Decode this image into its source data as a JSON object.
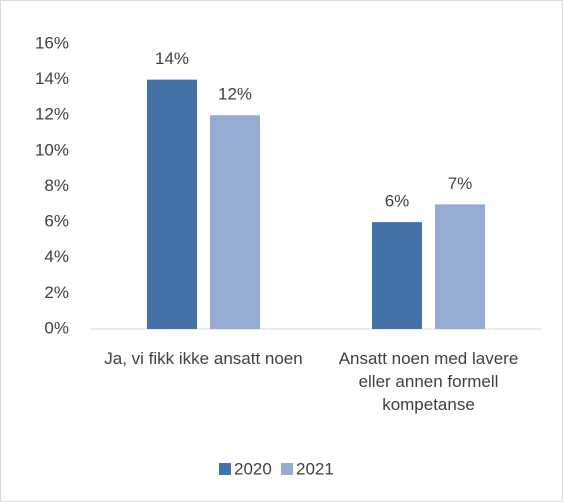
{
  "chart_data": {
    "type": "bar",
    "categories": [
      "Ja, vi fikk ikke ansatt noen",
      "Ansatt noen med lavere eller annen formell kompetanse"
    ],
    "series": [
      {
        "name": "2020",
        "color": "#4472a8",
        "values": [
          14,
          6
        ],
        "value_labels": [
          "14%",
          "6%"
        ]
      },
      {
        "name": "2021",
        "color": "#95abd4",
        "values": [
          12,
          7
        ],
        "value_labels": [
          "12%",
          "7%"
        ]
      }
    ],
    "ylim": [
      0,
      16
    ],
    "yticks": [
      {
        "value": 0,
        "label": "0%"
      },
      {
        "value": 2,
        "label": "2%"
      },
      {
        "value": 4,
        "label": "4%"
      },
      {
        "value": 6,
        "label": "6%"
      },
      {
        "value": 8,
        "label": "8%"
      },
      {
        "value": 10,
        "label": "10%"
      },
      {
        "value": 12,
        "label": "12%"
      },
      {
        "value": 14,
        "label": "14%"
      },
      {
        "value": 16,
        "label": "16%"
      }
    ],
    "grid": false,
    "legend": "bottom"
  }
}
